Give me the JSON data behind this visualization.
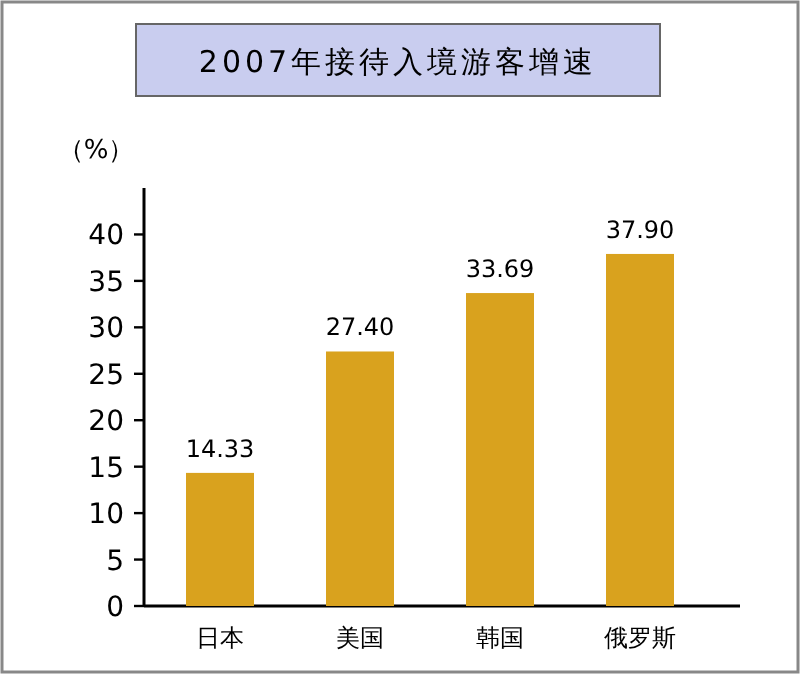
{
  "chart_data": {
    "type": "bar",
    "title": "2007年接待入境游客增速",
    "ylabel": "（%）",
    "categories": [
      "日本",
      "美国",
      "韩国",
      "俄罗斯"
    ],
    "values": [
      14.33,
      27.4,
      33.69,
      37.9
    ],
    "value_labels": [
      "14.33",
      "27.40",
      "33.69",
      "37.90"
    ],
    "color": "#d9a21e",
    "ylim": [
      0,
      45
    ],
    "yticks": [
      0,
      5,
      10,
      15,
      20,
      25,
      30,
      35,
      40
    ]
  }
}
